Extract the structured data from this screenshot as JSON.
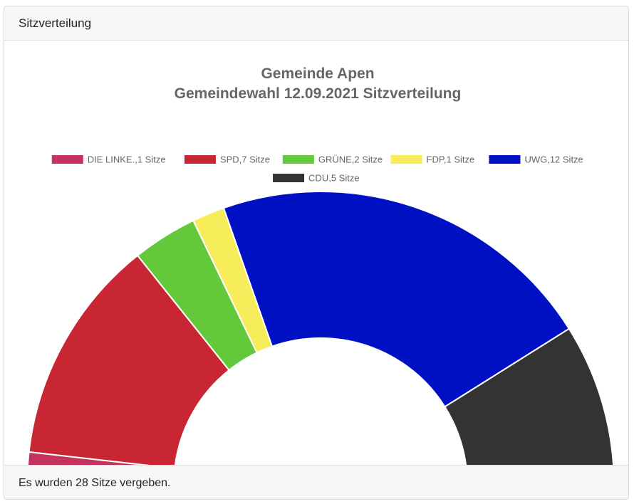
{
  "header": {
    "title": "Sitzverteilung"
  },
  "footer": {
    "text": "Es wurden 28 Sitze vergeben."
  },
  "chart_data": {
    "type": "pie",
    "variant": "half-doughnut",
    "title": [
      "Gemeinde Apen",
      "Gemeindewahl 12.09.2021 Sitzverteilung"
    ],
    "legend_position": "top",
    "total_seats": 28,
    "series": [
      {
        "name": "DIE LINKE.,1 Sitze",
        "value": 1,
        "color": "#c4325e"
      },
      {
        "name": "SPD,7 Sitze",
        "value": 7,
        "color": "#c82632"
      },
      {
        "name": "GRÜNE,2 Sitze",
        "value": 2,
        "color": "#63c93a"
      },
      {
        "name": "FDP,1 Sitze",
        "value": 1,
        "color": "#f7ec5a"
      },
      {
        "name": "UWG,12 Sitze",
        "value": 12,
        "color": "#0011c4"
      },
      {
        "name": "CDU,5 Sitze",
        "value": 5,
        "color": "#333333"
      }
    ]
  }
}
